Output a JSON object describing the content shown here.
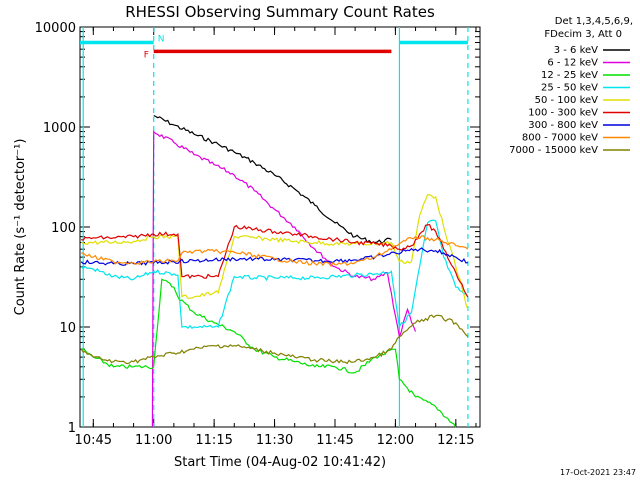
{
  "chart_data": {
    "type": "line",
    "title": "RHESSI Observing Summary Count Rates",
    "xlabel": "Start Time (04-Aug-02 10:41:42)",
    "ylabel": "Count Rate (s⁻¹ detector⁻¹)",
    "x_ticks": [
      "10:45",
      "11:00",
      "11:15",
      "11:30",
      "11:45",
      "12:00",
      "12:15"
    ],
    "y_ticks": [
      "1",
      "10",
      "100",
      "1000",
      "10000"
    ],
    "yscale": "log",
    "ylim": [
      1,
      10000
    ],
    "xlim": [
      "10:41:42",
      "12:21:00"
    ],
    "legend_header": [
      "Det 1,3,4,5,6,9,",
      "FDecim 3, Att 0"
    ],
    "legend_position": "right",
    "footer": "17-Oct-2021 23:47",
    "flags": [
      {
        "label": "N",
        "color": "#00e5ee",
        "segments": [
          [
            "10:41:42",
            "11:00"
          ],
          [
            "12:01",
            "12:18"
          ]
        ],
        "level": 7000
      },
      {
        "label": "F",
        "color": "#e00000",
        "segments": [
          [
            "11:00",
            "11:59"
          ]
        ],
        "level": 5700
      }
    ],
    "vlines": [
      {
        "time": "10:42:30",
        "color": "#00e5ee",
        "style": "solid"
      },
      {
        "time": "11:00",
        "color": "#00e5ee",
        "style": "dashed"
      },
      {
        "time": "12:01",
        "color": "#00e5ee",
        "style": "solid"
      },
      {
        "time": "12:18",
        "color": "#00e5ee",
        "style": "dashed"
      }
    ],
    "series": [
      {
        "name": "3 - 6 keV",
        "color": "#000000",
        "x": [
          "11:00",
          "11:05",
          "11:10",
          "11:15",
          "11:20",
          "11:25",
          "11:30",
          "11:35",
          "11:40",
          "11:45",
          "11:50",
          "11:55",
          "11:59"
        ],
        "y": [
          1300,
          1050,
          850,
          700,
          560,
          440,
          330,
          240,
          165,
          110,
          80,
          70,
          75
        ]
      },
      {
        "name": "6 - 12 keV",
        "color": "#e000e0",
        "x": [
          "10:59:40",
          "11:00",
          "11:05",
          "11:10",
          "11:15",
          "11:20",
          "11:25",
          "11:30",
          "11:35",
          "11:40",
          "11:45",
          "11:50",
          "11:55",
          "11:58",
          "12:01",
          "12:03",
          "12:05"
        ],
        "y": [
          1,
          900,
          700,
          530,
          420,
          330,
          230,
          150,
          100,
          60,
          40,
          32,
          30,
          35,
          8,
          15,
          9
        ]
      },
      {
        "name": "12 - 25 keV",
        "color": "#00e000",
        "x": [
          "10:42",
          "10:45",
          "10:50",
          "10:55",
          "11:00",
          "11:02",
          "11:05",
          "11:06",
          "11:10",
          "11:15",
          "11:20",
          "11:25",
          "11:30",
          "11:35",
          "11:40",
          "11:45",
          "11:50",
          "11:55",
          "12:00",
          "12:01",
          "12:05",
          "12:10",
          "12:15"
        ],
        "y": [
          6,
          5,
          4,
          4,
          4,
          30,
          25,
          20,
          14,
          11,
          9,
          6,
          5,
          4.5,
          4,
          4,
          3.5,
          5,
          6,
          3,
          2,
          1.6,
          1
        ],
        "note": "step drops at 11:06"
      },
      {
        "name": "25 - 50 keV",
        "color": "#00e5ee",
        "x": [
          "10:42",
          "10:45",
          "10:50",
          "10:55",
          "11:00",
          "11:05",
          "11:06",
          "11:07",
          "11:10",
          "11:15",
          "11:16",
          "11:20",
          "11:25",
          "11:30",
          "11:35",
          "11:40",
          "11:45",
          "11:50",
          "11:55",
          "11:59",
          "12:01",
          "12:04",
          "12:06",
          "12:08",
          "12:10",
          "12:12",
          "12:15",
          "12:18"
        ],
        "y": [
          40,
          38,
          32,
          30,
          36,
          34,
          33,
          10,
          10,
          10,
          10,
          32,
          31,
          31,
          31,
          31,
          32,
          33,
          34,
          36,
          10,
          14,
          40,
          110,
          115,
          50,
          25,
          20
        ]
      },
      {
        "name": "50 - 100 keV",
        "color": "#e0e000",
        "x": [
          "10:42",
          "10:50",
          "10:55",
          "11:00",
          "11:05",
          "11:06",
          "11:07",
          "11:10",
          "11:15",
          "11:16",
          "11:20",
          "11:25",
          "11:30",
          "11:35",
          "11:40",
          "11:45",
          "11:50",
          "11:55",
          "11:59",
          "12:01",
          "12:04",
          "12:06",
          "12:08",
          "12:10",
          "12:12",
          "12:15",
          "12:18"
        ],
        "y": [
          70,
          70,
          72,
          80,
          80,
          80,
          20,
          20,
          22,
          22,
          80,
          78,
          75,
          72,
          70,
          68,
          68,
          68,
          70,
          45,
          45,
          130,
          210,
          200,
          100,
          40,
          15
        ]
      },
      {
        "name": "100 - 300 keV",
        "color": "#e00000",
        "x": [
          "10:42",
          "10:45",
          "10:50",
          "10:55",
          "11:00",
          "11:05",
          "11:06",
          "11:07",
          "11:10",
          "11:15",
          "11:16",
          "11:20",
          "11:25",
          "11:30",
          "11:35",
          "11:40",
          "11:45",
          "11:50",
          "11:55",
          "11:59",
          "12:01",
          "12:04",
          "12:06",
          "12:08",
          "12:10",
          "12:12",
          "12:15",
          "12:18"
        ],
        "y": [
          75,
          78,
          78,
          80,
          85,
          85,
          85,
          32,
          32,
          32,
          32,
          100,
          95,
          90,
          85,
          80,
          75,
          70,
          68,
          65,
          60,
          65,
          85,
          105,
          90,
          60,
          35,
          20
        ]
      },
      {
        "name": "300 - 800 keV",
        "color": "#0000e0",
        "x": [
          "10:42",
          "10:45",
          "10:50",
          "10:55",
          "11:00",
          "11:05",
          "11:10",
          "11:15",
          "11:20",
          "11:25",
          "11:30",
          "11:35",
          "11:40",
          "11:45",
          "11:50",
          "11:55",
          "12:00",
          "12:05",
          "12:10",
          "12:15",
          "12:18"
        ],
        "y": [
          45,
          44,
          43,
          43,
          44,
          45,
          46,
          47,
          48,
          48,
          47,
          47,
          46,
          46,
          47,
          50,
          55,
          60,
          58,
          50,
          44
        ]
      },
      {
        "name": "800 - 7000 keV",
        "color": "#ff8800",
        "x": [
          "10:42",
          "10:45",
          "10:50",
          "10:55",
          "11:00",
          "11:05",
          "11:06",
          "11:07",
          "11:10",
          "11:15",
          "11:16",
          "11:20",
          "11:25",
          "11:30",
          "11:35",
          "11:40",
          "11:45",
          "11:50",
          "11:55",
          "12:00",
          "12:05",
          "12:10",
          "12:15",
          "12:18"
        ],
        "y": [
          55,
          50,
          45,
          44,
          45,
          46,
          46,
          55,
          57,
          57,
          57,
          56,
          52,
          48,
          45,
          43,
          42,
          44,
          50,
          65,
          80,
          75,
          65,
          60
        ]
      },
      {
        "name": "7000 - 15000 keV",
        "color": "#808000",
        "x": [
          "10:42",
          "10:45",
          "10:50",
          "10:55",
          "11:00",
          "11:05",
          "11:10",
          "11:15",
          "11:20",
          "11:25",
          "11:30",
          "11:35",
          "11:40",
          "11:45",
          "11:50",
          "11:55",
          "11:59",
          "12:01",
          "12:05",
          "12:10",
          "12:15",
          "12:18"
        ],
        "y": [
          6,
          5,
          4.5,
          4.5,
          5,
          5.5,
          6,
          6.5,
          6.5,
          6,
          5.5,
          5,
          4.7,
          4.5,
          4.5,
          5,
          6,
          8,
          11,
          13,
          11,
          8
        ]
      }
    ]
  }
}
